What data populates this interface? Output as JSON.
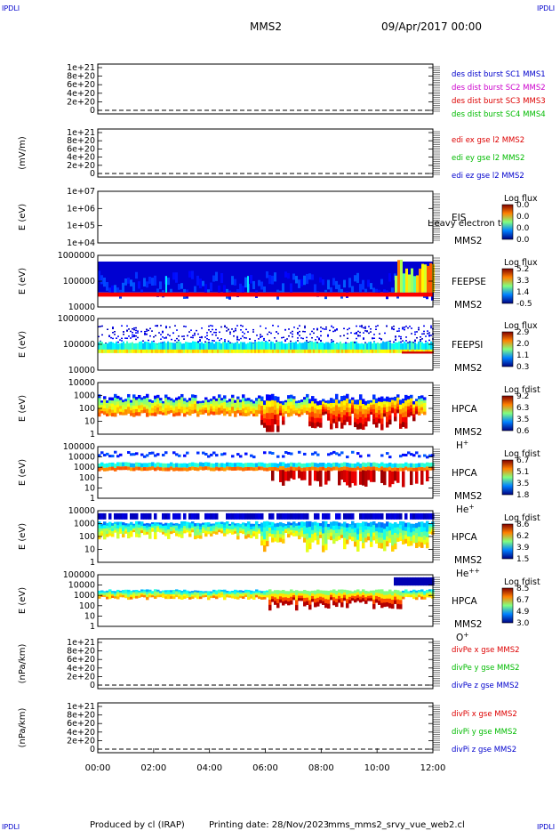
{
  "header": {
    "corner_label": "IPDLI",
    "spacecraft": "MMS2",
    "datetime": "09/Apr/2017 00:00"
  },
  "footer": {
    "produced_by": "Produced by cl (IRAP)",
    "printing_date": "Printing date: 28/Nov/2023",
    "filename": "mms_mms2_srvy_vue_web2.cl"
  },
  "time_axis": {
    "tick_labels": [
      "00:00",
      "02:00",
      "04:00",
      "06:00",
      "08:00",
      "10:00",
      "12:00"
    ],
    "range_hours": [
      0,
      12
    ]
  },
  "colors": {
    "blue": "#0000cc",
    "magenta": "#cc00cc",
    "red": "#dd0000",
    "green": "#00bb00"
  },
  "chart_data": [
    {
      "type": "line",
      "ylabel": "",
      "ytick_labels": [
        "1e+21",
        "8e+20",
        "6e+20",
        "4e+20",
        "2e+20",
        "0"
      ],
      "ylim": [
        0,
        1e+21
      ],
      "zero_line": "dashed",
      "legend": [
        {
          "text": "des dist burst SC1 MMS1",
          "color": "#0000cc"
        },
        {
          "text": "des dist burst SC2 MMS2",
          "color": "#cc00cc"
        },
        {
          "text": "des dist burst SC3 MMS3",
          "color": "#dd0000"
        },
        {
          "text": "des dist burst SC4 MMS4",
          "color": "#00bb00"
        }
      ]
    },
    {
      "type": "line",
      "ylabel": "(mV/m)",
      "ytick_labels": [
        "1e+21",
        "8e+20",
        "6e+20",
        "4e+20",
        "2e+20",
        "0"
      ],
      "ylim": [
        0,
        1e+21
      ],
      "zero_line": "dashed",
      "legend": [
        {
          "text": "edi ex gse l2 MMS2",
          "color": "#dd0000"
        },
        {
          "text": "edi ey gse l2 MMS2",
          "color": "#00bb00"
        },
        {
          "text": "edi ez gse l2 MMS2",
          "color": "#0000cc"
        }
      ]
    },
    {
      "type": "heatmap",
      "ylabel": "E (eV)",
      "ytick_labels": [
        "1e+07",
        "1e+06",
        "1e+05",
        "1e+04"
      ],
      "scale": "log",
      "instrument": "EIS",
      "spacecraft": "MMS2",
      "overlay_text": "Heavy electron to",
      "colorbar_title": "Log flux",
      "colorbar_ticks": [
        "0.0",
        "0.0",
        "0.0",
        "0.0"
      ],
      "empty": true
    },
    {
      "type": "heatmap",
      "ylabel": "E (eV)",
      "ytick_labels": [
        "1000000",
        "100000",
        "10000"
      ],
      "scale": "log",
      "instrument": "FEEPSE",
      "spacecraft": "MMS2",
      "colorbar_title": "Log flux",
      "colorbar_ticks": [
        "5.2",
        "3.3",
        "1.4",
        "-0.5"
      ],
      "pattern": "feepse"
    },
    {
      "type": "heatmap",
      "ylabel": "E (eV)",
      "ytick_labels": [
        "1000000",
        "100000",
        "10000"
      ],
      "scale": "log",
      "instrument": "FEEPSI",
      "spacecraft": "MMS2",
      "colorbar_title": "Log flux",
      "colorbar_ticks": [
        "2.9",
        "2.0",
        "1.1",
        "0.3"
      ],
      "pattern": "feepsi"
    },
    {
      "type": "heatmap",
      "ylabel": "E (eV)",
      "ytick_labels": [
        "10000",
        "1000",
        "100",
        "10",
        "1"
      ],
      "scale": "log",
      "instrument": "HPCA",
      "spacecraft": "MMS2",
      "species": "H",
      "species_charge": "+",
      "colorbar_title": "Log fdist",
      "colorbar_ticks": [
        "9.2",
        "6.3",
        "3.5",
        "0.6"
      ],
      "pattern": "hplus"
    },
    {
      "type": "heatmap",
      "ylabel": "E (eV)",
      "ytick_labels": [
        "100000",
        "10000",
        "1000",
        "100",
        "10",
        "1"
      ],
      "scale": "log",
      "instrument": "HPCA",
      "spacecraft": "MMS2",
      "species": "He",
      "species_charge": "+",
      "colorbar_title": "Log fdist",
      "colorbar_ticks": [
        "6.7",
        "5.1",
        "3.5",
        "1.8"
      ],
      "pattern": "heplus"
    },
    {
      "type": "heatmap",
      "ylabel": "E (eV)",
      "ytick_labels": [
        "10000",
        "1000",
        "100",
        "10",
        "1"
      ],
      "scale": "log",
      "instrument": "HPCA",
      "spacecraft": "MMS2",
      "species": "He",
      "species_charge": "++",
      "colorbar_title": "Log fdist",
      "colorbar_ticks": [
        "8.6",
        "6.2",
        "3.9",
        "1.5"
      ],
      "pattern": "heplusplus"
    },
    {
      "type": "heatmap",
      "ylabel": "E (eV)",
      "ytick_labels": [
        "100000",
        "10000",
        "1000",
        "100",
        "10",
        "1"
      ],
      "scale": "log",
      "instrument": "HPCA",
      "spacecraft": "MMS2",
      "species": "O",
      "species_charge": "+",
      "colorbar_title": "Log fdist",
      "colorbar_ticks": [
        "8.5",
        "6.7",
        "4.9",
        "3.0"
      ],
      "pattern": "oplus"
    },
    {
      "type": "line",
      "ylabel": "(nPa/km)",
      "ytick_labels": [
        "1e+21",
        "8e+20",
        "6e+20",
        "4e+20",
        "2e+20",
        "0"
      ],
      "ylim": [
        0,
        1e+21
      ],
      "zero_line": "dashed",
      "legend": [
        {
          "text": "divPe x gse MMS2",
          "color": "#dd0000"
        },
        {
          "text": "divPe y gse MMS2",
          "color": "#00bb00"
        },
        {
          "text": "divPe z gse MMS2",
          "color": "#0000cc"
        }
      ]
    },
    {
      "type": "line",
      "ylabel": "(nPa/km)",
      "ytick_labels": [
        "1e+21",
        "8e+20",
        "6e+20",
        "4e+20",
        "2e+20",
        "0"
      ],
      "ylim": [
        0,
        1e+21
      ],
      "zero_line": "dashed",
      "legend": [
        {
          "text": "divPi x gse MMS2",
          "color": "#dd0000"
        },
        {
          "text": "divPi y gse MMS2",
          "color": "#00bb00"
        },
        {
          "text": "divPi z gse MMS2",
          "color": "#0000cc"
        }
      ]
    }
  ]
}
